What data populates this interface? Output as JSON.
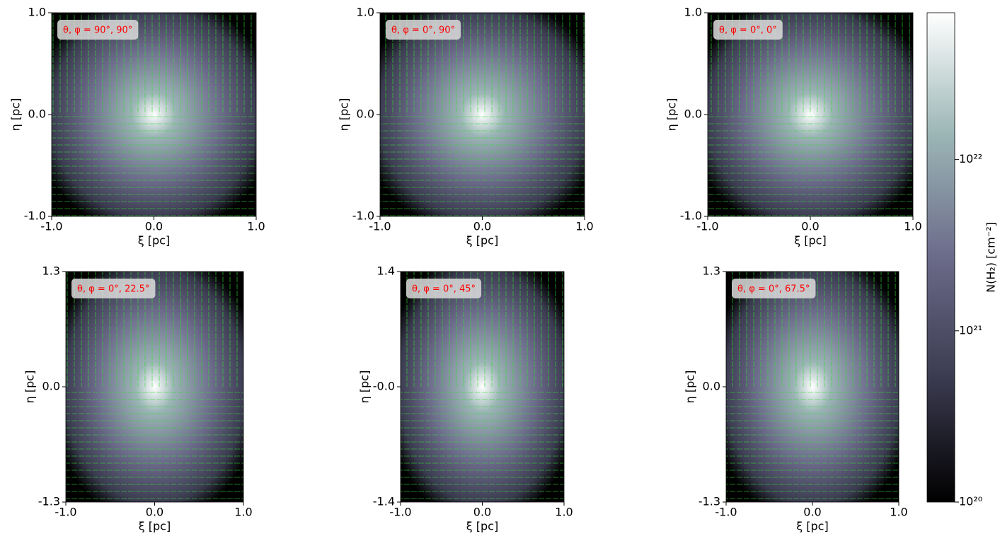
{
  "chart_data": [
    {
      "type": "map",
      "annotation": "θ, φ = 90°, 90°",
      "xlabel": "ξ [pc]",
      "ylabel": "η [pc]",
      "xlim": [
        -1,
        1
      ],
      "ylim": [
        -1,
        1
      ],
      "xticks": [
        {
          "value": -1,
          "label": "-1.0"
        },
        {
          "value": 0,
          "label": "0.0"
        },
        {
          "value": 1,
          "label": "1.0"
        }
      ],
      "yticks": [
        {
          "value": -1,
          "label": "-1.0"
        },
        {
          "value": 0,
          "label": "0.0"
        },
        {
          "value": 1,
          "label": "1.0"
        }
      ]
    },
    {
      "type": "map",
      "annotation": "θ, φ = 0°, 90°",
      "xlabel": "ξ [pc]",
      "ylabel": "η [pc]",
      "xlim": [
        -1,
        1
      ],
      "ylim": [
        -1,
        1
      ],
      "xticks": [
        {
          "value": -1,
          "label": "-1.0"
        },
        {
          "value": 0,
          "label": "0.0"
        },
        {
          "value": 1,
          "label": "1.0"
        }
      ],
      "yticks": [
        {
          "value": -1,
          "label": "-1.0"
        },
        {
          "value": 0,
          "label": "0.0"
        },
        {
          "value": 1,
          "label": "1.0"
        }
      ]
    },
    {
      "type": "map",
      "annotation": "θ, φ = 0°, 0°",
      "xlabel": "ξ [pc]",
      "ylabel": "η [pc]",
      "xlim": [
        -1,
        1
      ],
      "ylim": [
        -1,
        1
      ],
      "xticks": [
        {
          "value": -1,
          "label": "-1.0"
        },
        {
          "value": 0,
          "label": "0.0"
        },
        {
          "value": 1,
          "label": "1.0"
        }
      ],
      "yticks": [
        {
          "value": -1,
          "label": "-1.0"
        },
        {
          "value": 0,
          "label": "0.0"
        },
        {
          "value": 1,
          "label": "1.0"
        }
      ]
    },
    {
      "type": "map",
      "annotation": "θ, φ = 0°, 22.5°",
      "xlabel": "ξ [pc]",
      "ylabel": "η [pc]",
      "xlim": [
        -1,
        1
      ],
      "ylim": [
        -1.3,
        1.3
      ],
      "xticks": [
        {
          "value": -1,
          "label": "-1.0"
        },
        {
          "value": 0,
          "label": "0.0"
        },
        {
          "value": 1,
          "label": "1.0"
        }
      ],
      "yticks": [
        -1.3,
        {
          "value": 0,
          "label": "0.0"
        },
        1.3
      ]
    },
    {
      "type": "map",
      "annotation": "θ, φ = 0°, 45°",
      "xlabel": "ξ [pc]",
      "ylabel": "η [pc]",
      "xlim": [
        -1,
        1
      ],
      "ylim": [
        -1.4,
        1.4
      ],
      "xticks": [
        {
          "value": -1,
          "label": "-1.0"
        },
        {
          "value": 0,
          "label": "0.0"
        },
        {
          "value": 1,
          "label": "1.0"
        }
      ],
      "yticks": [
        -1.4,
        {
          "value": 0,
          "label": "-0.0"
        },
        1.4
      ]
    },
    {
      "type": "map",
      "annotation": "θ, φ = 0°, 67.5°",
      "xlabel": "ξ [pc]",
      "ylabel": "η [pc]",
      "xlim": [
        -1,
        1
      ],
      "ylim": [
        -1.3,
        1.3
      ],
      "xticks": [
        {
          "value": -1,
          "label": "-1.0"
        },
        {
          "value": 0,
          "label": "0.0"
        },
        {
          "value": 1,
          "label": "1.0"
        }
      ],
      "yticks": [
        -1.3,
        {
          "value": 0,
          "label": "0.0"
        },
        1.3
      ]
    },
    {
      "type": "colorbar",
      "label": "N(H₂) [cm⁻²]",
      "log_scale": true,
      "ylim": [
        1e+20,
        7.2e+22
      ],
      "yticks": [
        {
          "value": 1e+20,
          "label": "10²⁰"
        },
        {
          "value": 1e+21,
          "label": "10²¹"
        },
        {
          "value": 1e+22,
          "label": "10²²"
        }
      ],
      "colormap": [
        "#000000",
        "#3a3a4f",
        "#6b6b8a",
        "#9bb5b5",
        "#ffffff"
      ]
    }
  ]
}
